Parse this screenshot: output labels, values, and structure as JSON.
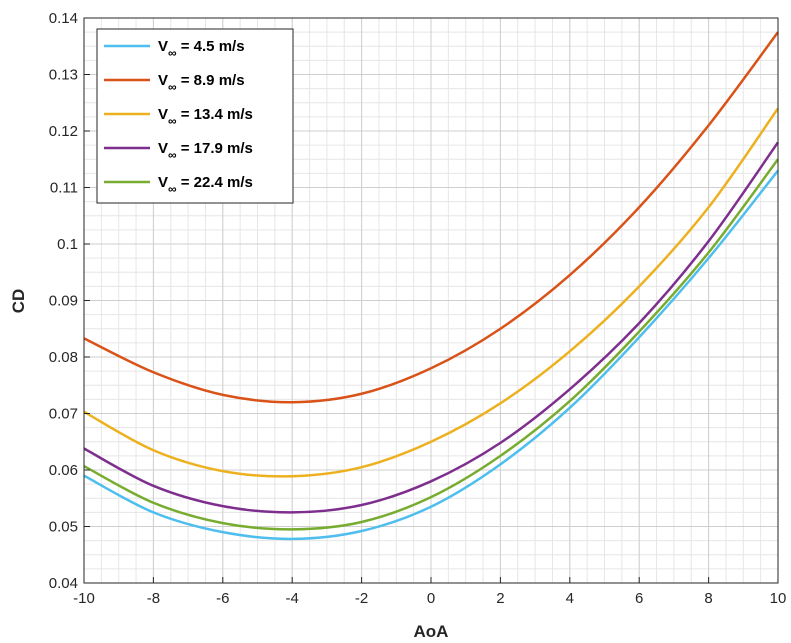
{
  "chart_data": {
    "type": "line",
    "title": "",
    "xlabel": "AoA",
    "ylabel": "CD",
    "xlim": [
      -10,
      10
    ],
    "ylim": [
      0.04,
      0.14
    ],
    "xticks": [
      -10,
      -8,
      -6,
      -4,
      -2,
      0,
      2,
      4,
      6,
      8,
      10
    ],
    "xtick_labels": [
      "-10",
      "-8",
      "-6",
      "-4",
      "-2",
      "0",
      "2",
      "4",
      "6",
      "8",
      "10"
    ],
    "yticks": [
      0.04,
      0.05,
      0.06,
      0.07,
      0.08,
      0.09,
      0.1,
      0.11,
      0.12,
      0.13,
      0.14
    ],
    "ytick_labels": [
      "0.04",
      "0.05",
      "0.06",
      "0.07",
      "0.08",
      "0.09",
      "0.1",
      "0.11",
      "0.12",
      "0.13",
      "0.14"
    ],
    "grid": true,
    "minor_grid": true,
    "legend_position": "top-left",
    "x": [
      -10,
      -8,
      -6,
      -4,
      -2,
      0,
      2,
      4,
      6,
      8,
      10
    ],
    "series": [
      {
        "name": "V∞ = 4.5 m/s",
        "label_main": "V",
        "label_sub": "∞",
        "label_rest": " = 4.5 m/s",
        "color": "#4DBEEE",
        "values": [
          0.059,
          0.0525,
          0.049,
          0.0478,
          0.0492,
          0.0535,
          0.061,
          0.071,
          0.0835,
          0.0975,
          0.113
        ]
      },
      {
        "name": "V∞ = 8.9 m/s",
        "label_main": "V",
        "label_sub": "∞",
        "label_rest": " = 8.9 m/s",
        "color": "#D95319",
        "values": [
          0.0833,
          0.0773,
          0.0733,
          0.072,
          0.0735,
          0.078,
          0.085,
          0.0945,
          0.1065,
          0.121,
          0.1375
        ]
      },
      {
        "name": "V∞ = 13.4 m/s",
        "label_main": "V",
        "label_sub": "∞",
        "label_rest": " = 13.4 m/s",
        "color": "#EDB120",
        "values": [
          0.0703,
          0.0635,
          0.0598,
          0.0589,
          0.0605,
          0.065,
          0.0718,
          0.081,
          0.0925,
          0.1065,
          0.124
        ]
      },
      {
        "name": "V∞ = 17.9 m/s",
        "label_main": "V",
        "label_sub": "∞",
        "label_rest": " = 17.9 m/s",
        "color": "#7E2F8E",
        "values": [
          0.0638,
          0.0572,
          0.0536,
          0.0525,
          0.0538,
          0.058,
          0.0648,
          0.0743,
          0.086,
          0.1005,
          0.118
        ]
      },
      {
        "name": "V∞ = 22.4 m/s",
        "label_main": "V",
        "label_sub": "∞",
        "label_rest": " = 22.4 m/s",
        "color": "#77AC30",
        "values": [
          0.0607,
          0.0542,
          0.0506,
          0.0495,
          0.0508,
          0.0552,
          0.0625,
          0.0722,
          0.0845,
          0.0985,
          0.115
        ]
      }
    ]
  }
}
